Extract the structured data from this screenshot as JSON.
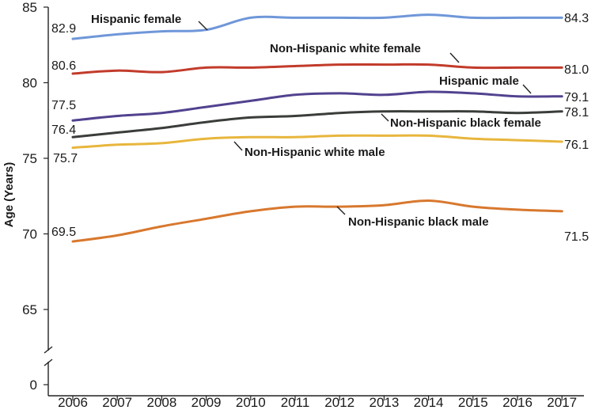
{
  "chart_data": {
    "type": "line",
    "title": "",
    "xlabel": "",
    "ylabel": "Age (Years)",
    "x": [
      2006,
      2007,
      2008,
      2009,
      2010,
      2011,
      2012,
      2013,
      2014,
      2015,
      2016,
      2017
    ],
    "x_tick_labels": [
      "2006",
      "2007",
      "2008",
      "2009",
      "2010",
      "2011",
      "2012",
      "2013",
      "2014",
      "2015",
      "2016",
      "2017"
    ],
    "y_ticks": [
      0,
      65,
      70,
      75,
      80,
      85
    ],
    "y_tick_labels": [
      "0",
      "65",
      "70",
      "75",
      "80",
      "85"
    ],
    "y_axis_break": "between 0 and 65",
    "grid": false,
    "series": [
      {
        "name": "Hispanic female",
        "color": "#6f97d9",
        "values": [
          82.9,
          83.2,
          83.4,
          83.5,
          84.3,
          84.3,
          84.3,
          84.3,
          84.5,
          84.3,
          84.3,
          84.3
        ],
        "start_label": "82.9",
        "end_label": "84.3"
      },
      {
        "name": "Non-Hispanic white female",
        "color": "#c23b2b",
        "values": [
          80.6,
          80.8,
          80.7,
          81.0,
          81.0,
          81.1,
          81.2,
          81.2,
          81.2,
          81.0,
          81.0,
          81.0
        ],
        "start_label": "80.6",
        "end_label": "81.0"
      },
      {
        "name": "Hispanic male",
        "color": "#52428f",
        "values": [
          77.5,
          77.8,
          78.0,
          78.4,
          78.8,
          79.2,
          79.3,
          79.2,
          79.4,
          79.3,
          79.1,
          79.1
        ],
        "start_label": "77.5",
        "end_label": "79.1"
      },
      {
        "name": "Non-Hispanic black female",
        "color": "#3a3d3a",
        "values": [
          76.4,
          76.7,
          77.0,
          77.4,
          77.7,
          77.8,
          78.0,
          78.1,
          78.1,
          78.1,
          78.0,
          78.1
        ],
        "start_label": "76.4",
        "end_label": "78.1"
      },
      {
        "name": "Non-Hispanic white male",
        "color": "#e8b63d",
        "values": [
          75.7,
          75.9,
          76.0,
          76.3,
          76.4,
          76.4,
          76.5,
          76.5,
          76.5,
          76.3,
          76.2,
          76.1
        ],
        "start_label": "75.7",
        "end_label": "76.1"
      },
      {
        "name": "Non-Hispanic black male",
        "color": "#d8782e",
        "values": [
          69.5,
          69.9,
          70.5,
          71.0,
          71.5,
          71.8,
          71.8,
          71.9,
          72.2,
          71.8,
          71.6,
          71.5
        ],
        "start_label": "69.5",
        "end_label": "71.5"
      }
    ]
  }
}
